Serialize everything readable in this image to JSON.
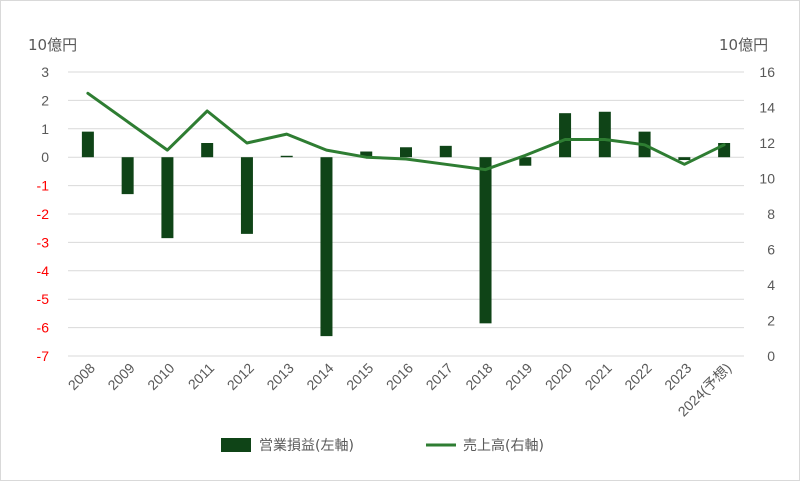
{
  "chart_data": {
    "type": "bar+line",
    "categories": [
      "2008",
      "2009",
      "2010",
      "2011",
      "2012",
      "2013",
      "2014",
      "2015",
      "2016",
      "2017",
      "2018",
      "2019",
      "2020",
      "2021",
      "2022",
      "2023",
      "2024(予想)"
    ],
    "series": [
      {
        "name": "営業損益(左軸)",
        "type": "bar",
        "axis": "left",
        "color": "#0f4417",
        "values": [
          0.9,
          -1.3,
          -2.85,
          0.5,
          -2.7,
          0.05,
          -6.3,
          0.2,
          0.35,
          0.4,
          -5.85,
          -0.3,
          1.55,
          1.6,
          0.9,
          -0.1,
          0.5
        ]
      },
      {
        "name": "売上高(右軸)",
        "type": "line",
        "axis": "right",
        "color": "#2e7d32",
        "values": [
          14.8,
          13.2,
          11.6,
          13.8,
          12.0,
          12.5,
          11.6,
          11.2,
          11.1,
          10.8,
          10.5,
          11.3,
          12.2,
          12.2,
          11.9,
          10.8,
          11.9
        ]
      }
    ],
    "y_left": {
      "unit": "10億円",
      "min": -7,
      "max": 3,
      "step": 1,
      "tick_labels": [
        "3",
        "2",
        "1",
        "0",
        "-1",
        "-2",
        "-3",
        "-4",
        "-5",
        "-6",
        "-7"
      ]
    },
    "y_right": {
      "unit": "10億円",
      "min": 0,
      "max": 16,
      "step": 2,
      "tick_labels": [
        "16",
        "14",
        "12",
        "10",
        "8",
        "6",
        "4",
        "2",
        "0"
      ]
    },
    "negative_tick_color": "#ff0000",
    "tick_color": "#595959",
    "grid": true,
    "legend_position": "bottom"
  }
}
